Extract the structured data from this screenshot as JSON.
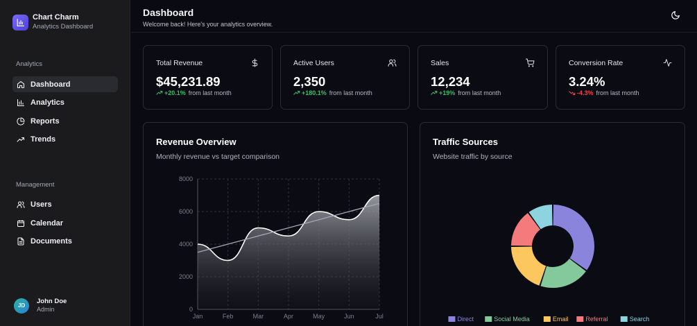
{
  "brand": {
    "name": "Chart Charm",
    "subtitle": "Analytics Dashboard"
  },
  "sidebar": {
    "sections": [
      {
        "label": "Analytics",
        "items": [
          {
            "label": "Dashboard",
            "icon": "home-icon",
            "active": true
          },
          {
            "label": "Analytics",
            "icon": "bar-chart-icon"
          },
          {
            "label": "Reports",
            "icon": "pie-chart-icon"
          },
          {
            "label": "Trends",
            "icon": "trending-up-icon"
          }
        ]
      },
      {
        "label": "Management",
        "items": [
          {
            "label": "Users",
            "icon": "users-icon"
          },
          {
            "label": "Calendar",
            "icon": "calendar-icon"
          },
          {
            "label": "Documents",
            "icon": "document-icon"
          }
        ]
      }
    ],
    "user": {
      "initials": "JD",
      "name": "John Doe",
      "role": "Admin"
    }
  },
  "header": {
    "title": "Dashboard",
    "subtitle": "Welcome back! Here's your analytics overview.",
    "theme_icon": "moon-icon"
  },
  "stats": [
    {
      "title": "Total Revenue",
      "value": "$45,231.89",
      "change": "+20.1%",
      "direction": "up",
      "suffix": "from last month",
      "icon": "dollar-icon"
    },
    {
      "title": "Active Users",
      "value": "2,350",
      "change": "+180.1%",
      "direction": "up",
      "suffix": "from last month",
      "icon": "users-icon"
    },
    {
      "title": "Sales",
      "value": "12,234",
      "change": "+19%",
      "direction": "up",
      "suffix": "from last month",
      "icon": "cart-icon"
    },
    {
      "title": "Conversion Rate",
      "value": "3.24%",
      "change": "-4.3%",
      "direction": "down",
      "suffix": "from last month",
      "icon": "activity-icon"
    }
  ],
  "colors": {
    "accent": "#7b6cf6",
    "up": "#31c165",
    "down": "#ef4452",
    "background": "#0a0b12"
  },
  "revenue_panel": {
    "title": "Revenue Overview",
    "subtitle": "Monthly revenue vs target comparison"
  },
  "traffic_panel": {
    "title": "Traffic Sources",
    "subtitle": "Website traffic by source"
  },
  "chart_data": [
    {
      "type": "area",
      "title": "Revenue Overview",
      "categories": [
        "Jan",
        "Feb",
        "Mar",
        "Apr",
        "May",
        "Jun",
        "Jul"
      ],
      "series": [
        {
          "values": [
            4000,
            3000,
            5000,
            4500,
            6000,
            5500,
            7000
          ],
          "style": "area",
          "color": "#ffffff"
        },
        {
          "values": [
            3500,
            4000,
            4500,
            5000,
            5500,
            6000,
            6500
          ],
          "style": "line",
          "color": "#a3a6b4"
        }
      ],
      "ylim": [
        0,
        8000
      ],
      "yticks": [
        0,
        2000,
        4000,
        6000,
        8000
      ],
      "grid": true
    },
    {
      "type": "pie",
      "title": "Traffic Sources",
      "donut": true,
      "legend": "bottom",
      "slices": [
        {
          "name": "Direct",
          "value": 35,
          "color": "#8a84dc"
        },
        {
          "name": "Social Media",
          "value": 20,
          "color": "#84c99b"
        },
        {
          "name": "Email",
          "value": 20,
          "color": "#fdc75f"
        },
        {
          "name": "Referral",
          "value": 15,
          "color": "#f47a7c"
        },
        {
          "name": "Search",
          "value": 10,
          "color": "#8dd3e0"
        }
      ]
    }
  ]
}
